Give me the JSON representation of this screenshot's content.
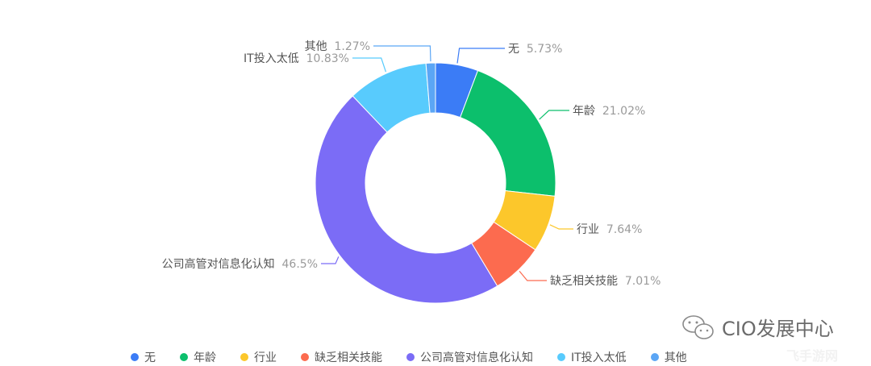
{
  "chart_data": {
    "type": "pie",
    "variant": "donut",
    "title": "",
    "categories": [
      "无",
      "年龄",
      "行业",
      "缺乏相关技能",
      "公司高管对信息化认知",
      "IT投入太低",
      "其他"
    ],
    "values": [
      5.73,
      21.02,
      7.64,
      7.01,
      46.5,
      10.83,
      1.27
    ],
    "value_labels": [
      "5.73%",
      "21.02%",
      "7.64%",
      "7.01%",
      "46.5%",
      "10.83%",
      "1.27%"
    ],
    "colors": [
      "#3B7CF6",
      "#0CBF6C",
      "#FCC72B",
      "#FC6B4F",
      "#7B6CF6",
      "#58CBFD",
      "#5BA6F5"
    ],
    "start_angle": "12 o'clock, clockwise",
    "legend_position": "bottom"
  },
  "legend": {
    "items": [
      {
        "label": "无",
        "color": "#3B7CF6"
      },
      {
        "label": "年龄",
        "color": "#0CBF6C"
      },
      {
        "label": "行业",
        "color": "#FCC72B"
      },
      {
        "label": "缺乏相关技能",
        "color": "#FC6B4F"
      },
      {
        "label": "公司高管对信息化认知",
        "color": "#7B6CF6"
      },
      {
        "label": "IT投入太低",
        "color": "#58CBFD"
      },
      {
        "label": "其他",
        "color": "#5BA6F5"
      }
    ]
  },
  "watermark": {
    "icon": "wechat-icon",
    "text": "CIO发展中心",
    "secondary": "飞手游网"
  }
}
